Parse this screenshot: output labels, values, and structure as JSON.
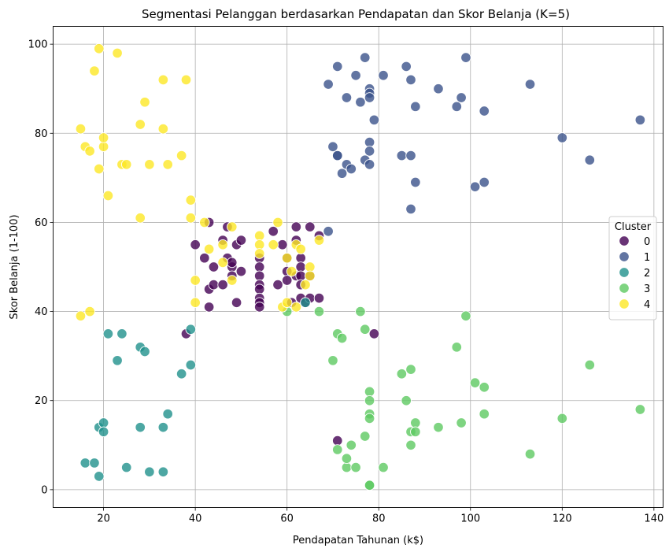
{
  "chart_data": {
    "type": "scatter",
    "title": "Segmentasi Pelanggan berdasarkan Pendapatan dan Skor Belanja (K=5)",
    "xlabel": "Pendapatan Tahunan (k$)",
    "ylabel": "Skor Belanja (1-100)",
    "xlim": [
      9,
      142
    ],
    "ylim": [
      -4,
      104
    ],
    "xticks": [
      20,
      40,
      60,
      80,
      100,
      120,
      140
    ],
    "yticks": [
      0,
      20,
      40,
      60,
      80,
      100
    ],
    "grid": true,
    "legend": {
      "title": "Cluster",
      "placement": "right"
    },
    "series": [
      {
        "name": "0",
        "color": "#440154",
        "points": [
          [
            38,
            35
          ],
          [
            40,
            55
          ],
          [
            42,
            52
          ],
          [
            43,
            60
          ],
          [
            43,
            45
          ],
          [
            43,
            41
          ],
          [
            44,
            50
          ],
          [
            44,
            46
          ],
          [
            46,
            56
          ],
          [
            46,
            46
          ],
          [
            47,
            59
          ],
          [
            47,
            52
          ],
          [
            48,
            50
          ],
          [
            48,
            51
          ],
          [
            48,
            48
          ],
          [
            49,
            55
          ],
          [
            49,
            42
          ],
          [
            50,
            56
          ],
          [
            50,
            49
          ],
          [
            54,
            52
          ],
          [
            54,
            50
          ],
          [
            54,
            48
          ],
          [
            54,
            46
          ],
          [
            54,
            45
          ],
          [
            54,
            43
          ],
          [
            54,
            42
          ],
          [
            54,
            41
          ],
          [
            57,
            58
          ],
          [
            58,
            46
          ],
          [
            59,
            55
          ],
          [
            60,
            52
          ],
          [
            60,
            49
          ],
          [
            60,
            47
          ],
          [
            61,
            42
          ],
          [
            62,
            59
          ],
          [
            62,
            56
          ],
          [
            62,
            48
          ],
          [
            63,
            52
          ],
          [
            63,
            50
          ],
          [
            63,
            48
          ],
          [
            63,
            46
          ],
          [
            63,
            43
          ],
          [
            64,
            42
          ],
          [
            65,
            59
          ],
          [
            65,
            48
          ],
          [
            65,
            43
          ],
          [
            67,
            57
          ],
          [
            67,
            43
          ],
          [
            71,
            11
          ],
          [
            79,
            35
          ]
        ]
      },
      {
        "name": "1",
        "color": "#3b528b",
        "points": [
          [
            69,
            91
          ],
          [
            69,
            58
          ],
          [
            70,
            77
          ],
          [
            71,
            95
          ],
          [
            71,
            75
          ],
          [
            71,
            75
          ],
          [
            72,
            71
          ],
          [
            73,
            88
          ],
          [
            73,
            73
          ],
          [
            74,
            72
          ],
          [
            75,
            93
          ],
          [
            76,
            87
          ],
          [
            77,
            97
          ],
          [
            77,
            74
          ],
          [
            78,
            90
          ],
          [
            78,
            89
          ],
          [
            78,
            88
          ],
          [
            78,
            78
          ],
          [
            78,
            76
          ],
          [
            78,
            73
          ],
          [
            79,
            83
          ],
          [
            81,
            93
          ],
          [
            85,
            75
          ],
          [
            86,
            95
          ],
          [
            87,
            92
          ],
          [
            87,
            75
          ],
          [
            87,
            63
          ],
          [
            88,
            86
          ],
          [
            88,
            69
          ],
          [
            93,
            90
          ],
          [
            97,
            86
          ],
          [
            98,
            88
          ],
          [
            99,
            97
          ],
          [
            101,
            68
          ],
          [
            103,
            85
          ],
          [
            103,
            69
          ],
          [
            113,
            91
          ],
          [
            120,
            79
          ],
          [
            126,
            74
          ],
          [
            137,
            83
          ]
        ]
      },
      {
        "name": "2",
        "color": "#21918c",
        "points": [
          [
            16,
            6
          ],
          [
            18,
            6
          ],
          [
            19,
            14
          ],
          [
            19,
            3
          ],
          [
            20,
            15
          ],
          [
            20,
            13
          ],
          [
            21,
            35
          ],
          [
            23,
            29
          ],
          [
            24,
            35
          ],
          [
            25,
            5
          ],
          [
            28,
            14
          ],
          [
            28,
            32
          ],
          [
            29,
            31
          ],
          [
            30,
            4
          ],
          [
            33,
            14
          ],
          [
            33,
            4
          ],
          [
            34,
            17
          ],
          [
            37,
            26
          ],
          [
            39,
            36
          ],
          [
            39,
            28
          ],
          [
            64,
            42
          ]
        ]
      },
      {
        "name": "3",
        "color": "#5ec962",
        "points": [
          [
            60,
            40
          ],
          [
            67,
            40
          ],
          [
            70,
            29
          ],
          [
            71,
            35
          ],
          [
            71,
            9
          ],
          [
            72,
            34
          ],
          [
            73,
            5
          ],
          [
            73,
            7
          ],
          [
            74,
            10
          ],
          [
            75,
            5
          ],
          [
            76,
            40
          ],
          [
            77,
            36
          ],
          [
            77,
            12
          ],
          [
            78,
            22
          ],
          [
            78,
            20
          ],
          [
            78,
            17
          ],
          [
            78,
            16
          ],
          [
            78,
            1
          ],
          [
            78,
            1
          ],
          [
            81,
            5
          ],
          [
            85,
            26
          ],
          [
            86,
            20
          ],
          [
            87,
            27
          ],
          [
            87,
            13
          ],
          [
            87,
            10
          ],
          [
            88,
            15
          ],
          [
            88,
            13
          ],
          [
            93,
            14
          ],
          [
            97,
            32
          ],
          [
            98,
            15
          ],
          [
            99,
            39
          ],
          [
            101,
            24
          ],
          [
            103,
            23
          ],
          [
            103,
            17
          ],
          [
            113,
            8
          ],
          [
            120,
            16
          ],
          [
            126,
            28
          ],
          [
            137,
            18
          ]
        ]
      },
      {
        "name": "4",
        "color": "#fde725",
        "points": [
          [
            15,
            39
          ],
          [
            15,
            81
          ],
          [
            16,
            77
          ],
          [
            17,
            40
          ],
          [
            17,
            76
          ],
          [
            18,
            94
          ],
          [
            19,
            99
          ],
          [
            19,
            72
          ],
          [
            20,
            77
          ],
          [
            20,
            79
          ],
          [
            21,
            66
          ],
          [
            23,
            98
          ],
          [
            24,
            73
          ],
          [
            25,
            73
          ],
          [
            28,
            82
          ],
          [
            28,
            61
          ],
          [
            29,
            87
          ],
          [
            30,
            73
          ],
          [
            33,
            92
          ],
          [
            33,
            81
          ],
          [
            34,
            73
          ],
          [
            37,
            75
          ],
          [
            38,
            92
          ],
          [
            39,
            65
          ],
          [
            39,
            61
          ],
          [
            40,
            47
          ],
          [
            40,
            42
          ],
          [
            42,
            60
          ],
          [
            43,
            54
          ],
          [
            46,
            51
          ],
          [
            46,
            55
          ],
          [
            48,
            59
          ],
          [
            48,
            47
          ],
          [
            54,
            57
          ],
          [
            54,
            55
          ],
          [
            54,
            53
          ],
          [
            57,
            55
          ],
          [
            58,
            60
          ],
          [
            59,
            41
          ],
          [
            60,
            52
          ],
          [
            60,
            42
          ],
          [
            61,
            49
          ],
          [
            62,
            55
          ],
          [
            62,
            41
          ],
          [
            63,
            54
          ],
          [
            64,
            46
          ],
          [
            65,
            50
          ],
          [
            65,
            48
          ],
          [
            67,
            56
          ]
        ]
      }
    ]
  }
}
